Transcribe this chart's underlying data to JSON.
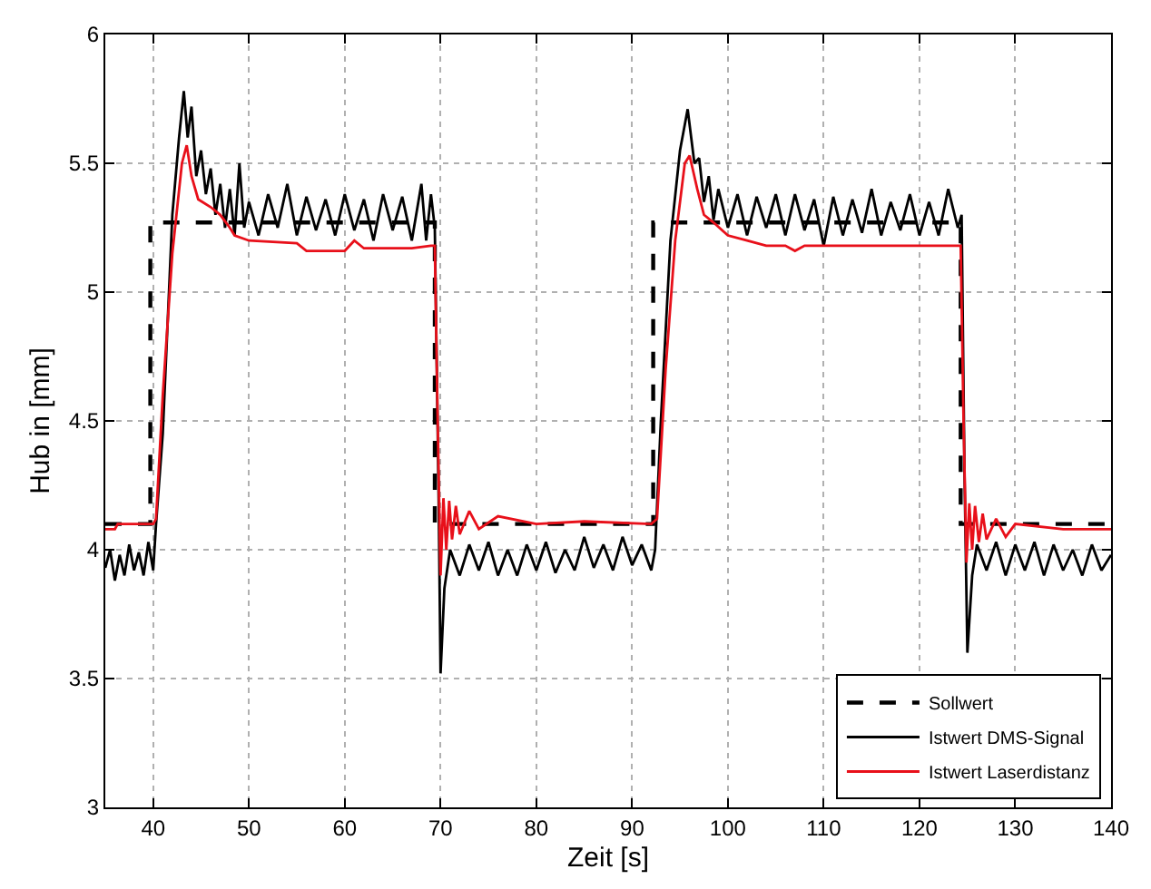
{
  "chart_data": {
    "type": "line",
    "xlabel": "Zeit [s]",
    "ylabel": "Hub in [mm]",
    "xlim": [
      35,
      140
    ],
    "xticks": [
      40,
      50,
      60,
      70,
      80,
      90,
      100,
      110,
      120,
      130,
      140
    ],
    "ylim": [
      3,
      6
    ],
    "yticks": [
      3,
      3.5,
      4,
      4.5,
      5,
      5.5,
      6
    ],
    "grid": true,
    "legend": "bottom right",
    "marker": "none",
    "series": [
      {
        "name": "Sollwert",
        "color": "#000000",
        "line_style": "dashed",
        "x": [
          35,
          39.7,
          39.7,
          69.4,
          69.4,
          92.2,
          92.2,
          124.3,
          124.3,
          140
        ],
        "values": [
          4.1,
          4.1,
          5.27,
          5.27,
          4.1,
          4.1,
          5.27,
          5.27,
          4.1,
          4.1
        ]
      },
      {
        "name": "Istwert DMS-Signal",
        "color": "#000000",
        "line_style": "solid",
        "x": [
          35,
          35.5,
          36,
          36.5,
          37,
          37.5,
          38,
          38.5,
          39,
          39.5,
          40,
          40.3,
          41,
          42,
          42.7,
          43.2,
          43.6,
          44,
          44.5,
          45,
          45.5,
          46,
          46.5,
          47,
          47.5,
          48,
          48.5,
          49,
          49.5,
          50,
          51,
          52,
          53,
          54,
          55,
          56,
          57,
          58,
          59,
          60,
          61,
          62,
          63,
          64,
          65,
          66,
          67,
          68,
          68.5,
          69,
          69.4,
          69.8,
          70,
          70.4,
          71,
          72,
          73,
          74,
          75,
          76,
          77,
          78,
          79,
          80,
          81,
          82,
          83,
          84,
          85,
          86,
          87,
          88,
          89,
          90,
          91,
          92,
          92.4,
          93,
          94,
          95,
          95.8,
          96.5,
          97,
          97.5,
          98,
          98.5,
          99,
          100,
          101,
          102,
          103,
          104,
          105,
          106,
          107,
          108,
          109,
          110,
          111,
          112,
          113,
          114,
          115,
          116,
          117,
          118,
          119,
          120,
          121,
          122,
          123,
          124,
          124.4,
          124.7,
          125,
          125.5,
          126,
          127,
          128,
          129,
          130,
          131,
          132,
          133,
          134,
          135,
          136,
          137,
          138,
          139,
          140
        ],
        "values": [
          3.93,
          4.0,
          3.88,
          3.98,
          3.9,
          4.02,
          3.92,
          3.99,
          3.9,
          4.03,
          3.92,
          4.1,
          4.45,
          5.3,
          5.6,
          5.78,
          5.6,
          5.72,
          5.45,
          5.55,
          5.38,
          5.48,
          5.3,
          5.42,
          5.25,
          5.4,
          5.22,
          5.5,
          5.25,
          5.35,
          5.22,
          5.38,
          5.25,
          5.42,
          5.22,
          5.37,
          5.24,
          5.36,
          5.22,
          5.38,
          5.24,
          5.36,
          5.2,
          5.38,
          5.24,
          5.37,
          5.2,
          5.42,
          5.2,
          5.38,
          5.25,
          4.2,
          3.52,
          3.85,
          4.0,
          3.9,
          4.02,
          3.92,
          4.03,
          3.9,
          4.0,
          3.9,
          4.02,
          3.92,
          4.03,
          3.91,
          4.0,
          3.92,
          4.05,
          3.93,
          4.02,
          3.92,
          4.05,
          3.94,
          4.02,
          3.92,
          4.0,
          4.5,
          5.2,
          5.55,
          5.71,
          5.5,
          5.52,
          5.35,
          5.45,
          5.28,
          5.4,
          5.25,
          5.38,
          5.22,
          5.37,
          5.25,
          5.38,
          5.22,
          5.38,
          5.24,
          5.36,
          5.18,
          5.37,
          5.22,
          5.36,
          5.23,
          5.4,
          5.22,
          5.35,
          5.24,
          5.38,
          5.22,
          5.35,
          5.22,
          5.4,
          5.25,
          5.3,
          4.3,
          3.6,
          3.9,
          4.02,
          3.92,
          4.03,
          3.9,
          4.02,
          3.92,
          4.03,
          3.9,
          4.02,
          3.92,
          4.0,
          3.9,
          4.02,
          3.92,
          3.98
        ]
      },
      {
        "name": "Istwert Laserdistanz",
        "color": "#e8101a",
        "line_style": "solid",
        "x": [
          35,
          36,
          36.3,
          40,
          40.3,
          41,
          42,
          43,
          43.5,
          44,
          44.7,
          46,
          47,
          48,
          48.5,
          50,
          55,
          56,
          60,
          61,
          62,
          67,
          69,
          69.4,
          69.7,
          70,
          70.3,
          70.6,
          70.9,
          71.2,
          71.6,
          72,
          73,
          74,
          76,
          80,
          85,
          92,
          92.6,
          93.5,
          94.5,
          95.5,
          96,
          96.8,
          97.5,
          98.5,
          100,
          102,
          104,
          106,
          107,
          108,
          124.3,
          124.6,
          124.9,
          125.2,
          125.5,
          125.8,
          126.2,
          126.6,
          127,
          128,
          129,
          130,
          135,
          140
        ],
        "values": [
          4.08,
          4.08,
          4.1,
          4.1,
          4.12,
          4.6,
          5.15,
          5.5,
          5.57,
          5.45,
          5.36,
          5.33,
          5.3,
          5.25,
          5.22,
          5.2,
          5.19,
          5.16,
          5.16,
          5.2,
          5.17,
          5.17,
          5.18,
          5.18,
          4.5,
          3.9,
          4.2,
          4.0,
          4.19,
          4.04,
          4.17,
          4.06,
          4.15,
          4.08,
          4.13,
          4.1,
          4.11,
          4.1,
          4.12,
          4.7,
          5.2,
          5.5,
          5.53,
          5.4,
          5.3,
          5.27,
          5.22,
          5.2,
          5.18,
          5.18,
          5.16,
          5.18,
          5.18,
          4.5,
          3.95,
          4.18,
          4.0,
          4.17,
          4.03,
          4.14,
          4.04,
          4.12,
          4.05,
          4.1,
          4.08,
          4.08
        ]
      }
    ]
  }
}
